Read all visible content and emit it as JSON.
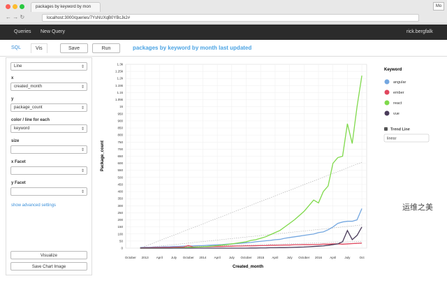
{
  "browser": {
    "tab_title": "packages by keyword by mon",
    "url": "localhost:3000/queries/7YsNUXqB0YBcJk2#",
    "profile": "Mo"
  },
  "navbar": {
    "items": [
      "Queries",
      "New Query"
    ],
    "user": "rick.bergfalk"
  },
  "toolbar": {
    "tabs": [
      "SQL",
      "Vis"
    ],
    "buttons": [
      "Save",
      "Run"
    ],
    "title": "packages by keyword by month last updated"
  },
  "settings": {
    "chart_type": "Line",
    "fields": [
      {
        "label": "x",
        "value": "created_month"
      },
      {
        "label": "y",
        "value": "package_count"
      },
      {
        "label": "color / line for each",
        "value": "keyword"
      },
      {
        "label": "size"
      },
      {
        "label": "x Facet"
      },
      {
        "label": "y Facet"
      }
    ],
    "advanced": "show advanced settings",
    "buttons": [
      "Visualize",
      "Save Chart Image"
    ]
  },
  "chart_data": {
    "type": "line",
    "x_label": "Created_month",
    "y_label": "Package_count",
    "legend_title": "Keyword",
    "trend_line": true,
    "trend_line_label": "Trend Line",
    "trend_line_type": "linear",
    "grid": true,
    "x": [
      2,
      3,
      4,
      5,
      6,
      7,
      8,
      9,
      10,
      11,
      12,
      13,
      14,
      15,
      16,
      17,
      18,
      19,
      20,
      21,
      22,
      23,
      24,
      25,
      26,
      27,
      28,
      29,
      30,
      31,
      32,
      33,
      34,
      35,
      36,
      37,
      38,
      39,
      40,
      41,
      42,
      43,
      44,
      45,
      46,
      47,
      48
    ],
    "series": [
      {
        "name": "angular",
        "color": "#74a7e0",
        "values": [
          5,
          6,
          6,
          8,
          8,
          10,
          10,
          12,
          12,
          14,
          15,
          16,
          18,
          18,
          20,
          22,
          24,
          25,
          28,
          30,
          32,
          35,
          38,
          40,
          45,
          48,
          52,
          55,
          60,
          62,
          70,
          75,
          80,
          85,
          90,
          95,
          100,
          110,
          115,
          130,
          150,
          175,
          185,
          190,
          190,
          200,
          280
        ]
      },
      {
        "name": "ember",
        "color": "#e0475e",
        "values": [
          2,
          3,
          3,
          4,
          4,
          5,
          5,
          6,
          7,
          8,
          18,
          8,
          9,
          10,
          10,
          11,
          12,
          12,
          13,
          14,
          15,
          15,
          16,
          16,
          17,
          18,
          18,
          20,
          20,
          21,
          22,
          22,
          24,
          24,
          25,
          25,
          26,
          26,
          28,
          28,
          30,
          30,
          28,
          30,
          32,
          34,
          36
        ]
      },
      {
        "name": "react",
        "color": "#7fd94b",
        "values": [
          0,
          0,
          0,
          0,
          0,
          0,
          0,
          1,
          2,
          3,
          5,
          6,
          8,
          10,
          12,
          15,
          18,
          22,
          25,
          30,
          35,
          40,
          45,
          55,
          60,
          70,
          80,
          95,
          110,
          125,
          150,
          175,
          200,
          230,
          260,
          300,
          340,
          320,
          400,
          440,
          600,
          640,
          650,
          880,
          740,
          1000,
          1220
        ]
      },
      {
        "name": "vue",
        "color": "#4a3b5a",
        "values": [
          0,
          0,
          0,
          0,
          0,
          0,
          0,
          0,
          0,
          0,
          0,
          0,
          0,
          0,
          0,
          0,
          0,
          0,
          0,
          0,
          0,
          0,
          0,
          1,
          1,
          2,
          2,
          3,
          3,
          4,
          4,
          5,
          6,
          7,
          8,
          10,
          12,
          14,
          16,
          20,
          25,
          30,
          45,
          125,
          60,
          90,
          150
        ]
      }
    ],
    "xlim": [
      -1,
      49
    ],
    "xticks": [
      {
        "value": 0,
        "label": "October"
      },
      {
        "value": 3,
        "label": "2013"
      },
      {
        "value": 6,
        "label": "April"
      },
      {
        "value": 9,
        "label": "July"
      },
      {
        "value": 12,
        "label": "October"
      },
      {
        "value": 15,
        "label": "2014"
      },
      {
        "value": 18,
        "label": "April"
      },
      {
        "value": 21,
        "label": "July"
      },
      {
        "value": 24,
        "label": "October"
      },
      {
        "value": 27,
        "label": "2015"
      },
      {
        "value": 30,
        "label": "April"
      },
      {
        "value": 33,
        "label": "July"
      },
      {
        "value": 36,
        "label": "October"
      },
      {
        "value": 39,
        "label": "2016"
      },
      {
        "value": 42,
        "label": "April"
      },
      {
        "value": 45,
        "label": "July"
      },
      {
        "value": 48,
        "label": "Oct"
      }
    ],
    "ylim": [
      0,
      1300
    ],
    "yticks": [
      0,
      50,
      100,
      150,
      200,
      250,
      300,
      350,
      400,
      450,
      500,
      550,
      600,
      650,
      700,
      750,
      800,
      850,
      900,
      950,
      {
        "value": 1000,
        "label": "1k"
      },
      {
        "value": 1050,
        "label": "1.05k"
      },
      {
        "value": 1100,
        "label": "1.1k"
      },
      {
        "value": 1150,
        "label": "1.15k"
      },
      {
        "value": 1200,
        "label": "1.2k"
      },
      {
        "value": 1250,
        "label": "1.25k"
      },
      {
        "value": 1300,
        "label": "1.3k"
      }
    ]
  },
  "watermark": "运维之美"
}
